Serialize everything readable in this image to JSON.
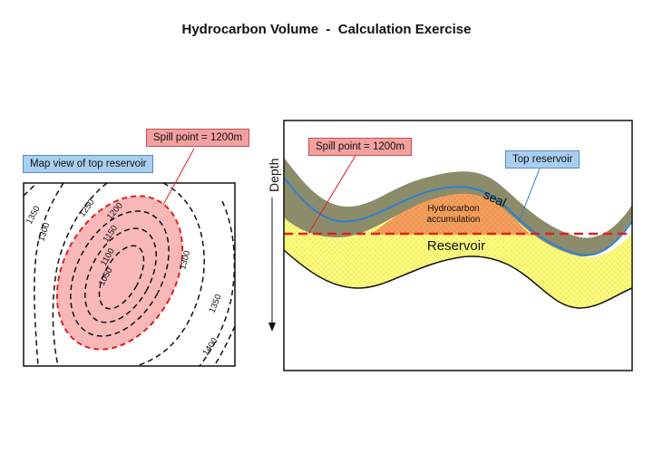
{
  "title": "Hydrocarbon Volume  -  Calculation Exercise",
  "map_panel": {
    "label": "Map view of top reservoir",
    "spill_label": "Spill point = 1200m",
    "contours": [
      "1350",
      "1300",
      "1250",
      "1200",
      "1150",
      "1100",
      "1050",
      "1300",
      "1350",
      "1400"
    ]
  },
  "section_panel": {
    "spill_label": "Spill point = 1200m",
    "top_reservoir_label": "Top reservoir",
    "depth_label": "Depth",
    "seal_label": "seal",
    "accumulation_label_line1": "Hydrocarbon",
    "accumulation_label_line2": "accumulation",
    "reservoir_label": "Reservoir"
  },
  "colors": {
    "spill_red": "#e02020",
    "oil": "#f4a060",
    "seal": "#8c8c6a",
    "reservoir": "#ffff80",
    "top_reservoir_line": "#2f7fd0",
    "red_callout": "#f4a0a0",
    "blue_callout": "#a9cff0"
  }
}
